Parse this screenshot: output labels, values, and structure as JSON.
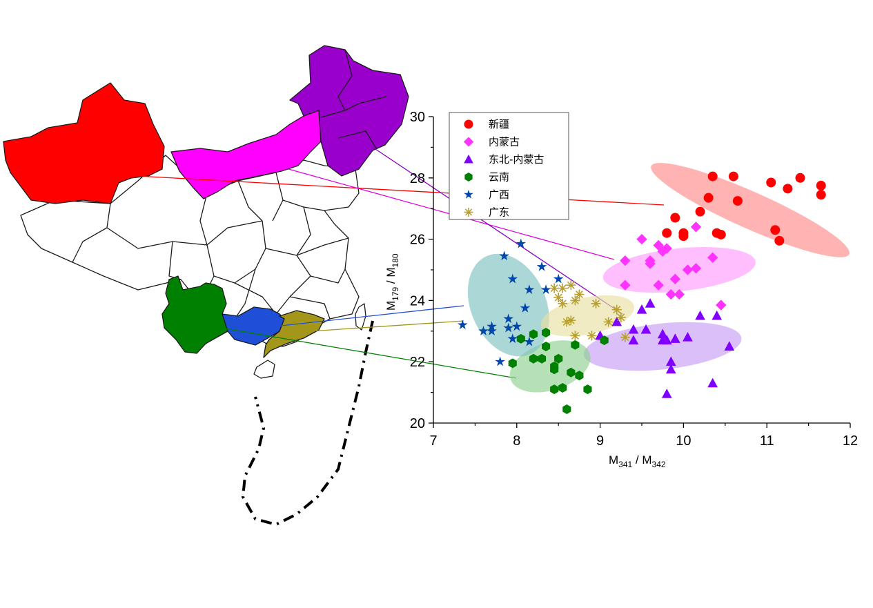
{
  "chart_data": {
    "type": "scatter",
    "x_axis": {
      "label_main": "M",
      "label_sub1": "341",
      "label_sep": " / M",
      "label_sub2": "342",
      "range": [
        7,
        12
      ],
      "ticks": [
        "7",
        "8",
        "9",
        "10",
        "11",
        "12"
      ]
    },
    "y_axis": {
      "label_main": "M",
      "label_sub1": "179",
      "label_sep": " / M",
      "label_sub2": "180",
      "range": [
        20,
        30
      ],
      "ticks": [
        "20",
        "22",
        "24",
        "26",
        "28",
        "30"
      ]
    },
    "legend_position": "top-left",
    "grid": false,
    "series": [
      {
        "name": "新疆",
        "marker": "circle",
        "color": "#ff0000",
        "ellipse_color": "#ff8a8a",
        "points": [
          [
            9.8,
            26.2
          ],
          [
            9.9,
            26.7
          ],
          [
            10.0,
            26.1
          ],
          [
            10.0,
            26.2
          ],
          [
            10.2,
            26.9
          ],
          [
            10.3,
            27.35
          ],
          [
            10.35,
            28.05
          ],
          [
            10.4,
            26.2
          ],
          [
            10.45,
            26.15
          ],
          [
            10.6,
            28.05
          ],
          [
            10.65,
            27.25
          ],
          [
            11.05,
            27.85
          ],
          [
            11.1,
            26.3
          ],
          [
            11.15,
            25.95
          ],
          [
            11.25,
            27.65
          ],
          [
            11.4,
            28.0
          ],
          [
            11.65,
            27.75
          ],
          [
            11.65,
            27.45
          ]
        ]
      },
      {
        "name": "内蒙古",
        "marker": "diamond",
        "color": "#ff33ff",
        "ellipse_color": "#ff9cff",
        "points": [
          [
            9.3,
            25.3
          ],
          [
            9.3,
            24.5
          ],
          [
            9.5,
            26.0
          ],
          [
            9.6,
            25.2
          ],
          [
            9.6,
            25.3
          ],
          [
            9.7,
            25.8
          ],
          [
            9.7,
            24.5
          ],
          [
            9.75,
            25.6
          ],
          [
            9.8,
            25.7
          ],
          [
            9.85,
            24.2
          ],
          [
            9.9,
            24.7
          ],
          [
            9.95,
            24.2
          ],
          [
            10.05,
            25.0
          ],
          [
            10.15,
            25.05
          ],
          [
            10.15,
            26.4
          ],
          [
            10.35,
            25.4
          ],
          [
            10.45,
            23.85
          ]
        ]
      },
      {
        "name": "东北-内蒙古",
        "marker": "triangle",
        "color": "#8000ff",
        "ellipse_color": "#c79cf5",
        "points": [
          [
            9.0,
            22.85
          ],
          [
            9.2,
            23.3
          ],
          [
            9.4,
            22.7
          ],
          [
            9.4,
            23.05
          ],
          [
            9.5,
            23.7
          ],
          [
            9.55,
            23.05
          ],
          [
            9.6,
            23.9
          ],
          [
            9.75,
            22.7
          ],
          [
            9.75,
            22.9
          ],
          [
            9.8,
            22.7
          ],
          [
            9.85,
            22.0
          ],
          [
            9.85,
            21.75
          ],
          [
            9.8,
            20.95
          ],
          [
            9.9,
            22.75
          ],
          [
            10.05,
            22.8
          ],
          [
            10.2,
            23.5
          ],
          [
            10.35,
            21.3
          ],
          [
            10.4,
            23.5
          ],
          [
            10.55,
            22.5
          ]
        ]
      },
      {
        "name": "云南",
        "marker": "hexagon",
        "color": "#008000",
        "ellipse_color": "#8fd18f",
        "points": [
          [
            7.95,
            21.95
          ],
          [
            8.05,
            22.75
          ],
          [
            8.2,
            22.9
          ],
          [
            8.2,
            22.1
          ],
          [
            8.3,
            22.1
          ],
          [
            8.35,
            22.95
          ],
          [
            8.35,
            22.5
          ],
          [
            8.45,
            21.85
          ],
          [
            8.45,
            21.75
          ],
          [
            8.5,
            22.1
          ],
          [
            8.45,
            21.1
          ],
          [
            8.55,
            21.15
          ],
          [
            8.6,
            20.45
          ],
          [
            8.65,
            21.65
          ],
          [
            8.7,
            22.55
          ],
          [
            8.75,
            21.55
          ],
          [
            8.85,
            21.1
          ],
          [
            9.05,
            22.7
          ]
        ]
      },
      {
        "name": "广西",
        "marker": "star",
        "color": "#0047ab",
        "ellipse_color": "#7fc2c2",
        "points": [
          [
            7.35,
            23.2
          ],
          [
            7.6,
            23.0
          ],
          [
            7.7,
            23.0
          ],
          [
            7.7,
            23.15
          ],
          [
            7.8,
            22.0
          ],
          [
            7.85,
            25.45
          ],
          [
            7.9,
            23.4
          ],
          [
            7.9,
            23.1
          ],
          [
            7.95,
            24.7
          ],
          [
            7.95,
            22.75
          ],
          [
            8.0,
            23.15
          ],
          [
            8.05,
            25.85
          ],
          [
            8.1,
            23.75
          ],
          [
            8.15,
            24.35
          ],
          [
            8.15,
            22.65
          ],
          [
            8.3,
            25.1
          ],
          [
            8.35,
            24.35
          ],
          [
            8.5,
            24.7
          ]
        ]
      },
      {
        "name": "广东",
        "marker": "asterisk",
        "color": "#b8a02a",
        "ellipse_color": "#e8e0a2",
        "points": [
          [
            8.45,
            24.4
          ],
          [
            8.5,
            24.1
          ],
          [
            8.55,
            24.4
          ],
          [
            8.55,
            23.9
          ],
          [
            8.6,
            23.3
          ],
          [
            8.65,
            24.5
          ],
          [
            8.65,
            23.35
          ],
          [
            8.7,
            24.0
          ],
          [
            8.7,
            22.85
          ],
          [
            8.75,
            24.2
          ],
          [
            8.9,
            22.85
          ],
          [
            8.95,
            23.9
          ],
          [
            9.1,
            23.3
          ],
          [
            9.2,
            23.7
          ],
          [
            9.25,
            23.45
          ],
          [
            9.3,
            22.8
          ]
        ]
      }
    ],
    "ellipses": [
      {
        "series": "新疆",
        "cx": 10.8,
        "cy": 26.95,
        "rx": 1.3,
        "ry": 1.2,
        "angle": -0.4
      },
      {
        "series": "内蒙古",
        "cx": 9.95,
        "cy": 25.0,
        "rx": 0.92,
        "ry": 1.4,
        "angle": 0.1
      },
      {
        "series": "东北-内蒙古",
        "cx": 9.75,
        "cy": 22.5,
        "rx": 0.95,
        "ry": 1.5,
        "angle": 0.1
      },
      {
        "series": "云南",
        "cx": 8.4,
        "cy": 21.85,
        "rx": 0.5,
        "ry": 1.55,
        "angle": 0.3
      },
      {
        "series": "广西",
        "cx": 7.9,
        "cy": 23.85,
        "rx": 0.45,
        "ry": 3.5,
        "angle": 0.4
      },
      {
        "series": "广东",
        "cx": 8.85,
        "cy": 23.5,
        "rx": 0.57,
        "ry": 1.2,
        "angle": 0.2
      }
    ]
  }
}
